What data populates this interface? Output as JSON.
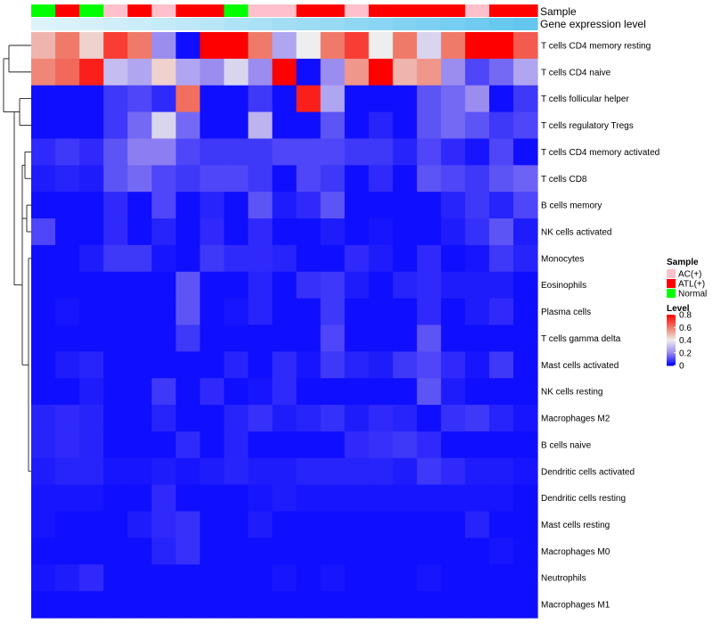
{
  "chart_data": {
    "type": "heatmap",
    "title": "",
    "row_labels": [
      "T cells CD4 memory resting",
      "T cells CD4 naive",
      "T cells follicular helper",
      "T cells regulatory  Tregs",
      "T cells CD4 memory activated",
      "T cells CD8",
      "B cells memory",
      "NK cells activated",
      "Monocytes",
      "Eosinophils",
      "Plasma cells",
      "T cells gamma delta",
      "Mast cells activated",
      "NK cells resting",
      "Macrophages M2",
      "B cells naive",
      "Dendritic cells activated",
      "Dendritic cells resting",
      "Mast cells resting",
      "Macrophages M0",
      "Neutrophils",
      "Macrophages M1"
    ],
    "column_annotations": {
      "sample_label": "Sample",
      "gene_label": "Gene expression level",
      "sample": [
        "Normal",
        "ATL(+)",
        "Normal",
        "AC(+)",
        "ATL(+)",
        "AC(+)",
        "ATL(+)",
        "ATL(+)",
        "Normal",
        "AC(+)",
        "AC(+)",
        "ATL(+)",
        "ATL(+)",
        "AC(+)",
        "ATL(+)",
        "ATL(+)",
        "ATL(+)",
        "ATL(+)",
        "AC(+)",
        "ATL(+)",
        "ATL(+)"
      ],
      "gene_expression_level": [
        0.02,
        0.05,
        0.08,
        0.12,
        0.16,
        0.2,
        0.25,
        0.3,
        0.35,
        0.4,
        0.45,
        0.5,
        0.55,
        0.6,
        0.65,
        0.7,
        0.75,
        0.8,
        0.85,
        0.9,
        0.95
      ]
    },
    "values": [
      [
        0.5,
        0.6,
        0.45,
        0.7,
        0.6,
        0.2,
        0.02,
        0.8,
        0.8,
        0.6,
        0.25,
        0.4,
        0.6,
        0.7,
        0.4,
        0.6,
        0.35,
        0.6,
        0.8,
        0.8,
        0.65
      ],
      [
        0.58,
        0.63,
        0.75,
        0.3,
        0.25,
        0.45,
        0.25,
        0.2,
        0.35,
        0.2,
        0.8,
        0.02,
        0.2,
        0.55,
        0.8,
        0.5,
        0.55,
        0.2,
        0.1,
        0.15,
        0.25
      ],
      [
        0.02,
        0.02,
        0.02,
        0.08,
        0.1,
        0.06,
        0.62,
        0.02,
        0.02,
        0.08,
        0.02,
        0.75,
        0.25,
        0.02,
        0.02,
        0.02,
        0.12,
        0.15,
        0.2,
        0.02,
        0.08
      ],
      [
        0.02,
        0.02,
        0.02,
        0.08,
        0.15,
        0.35,
        0.15,
        0.02,
        0.02,
        0.28,
        0.02,
        0.02,
        0.12,
        0.02,
        0.05,
        0.02,
        0.12,
        0.15,
        0.12,
        0.08,
        0.1
      ],
      [
        0.06,
        0.08,
        0.06,
        0.12,
        0.18,
        0.18,
        0.1,
        0.08,
        0.08,
        0.08,
        0.1,
        0.1,
        0.1,
        0.08,
        0.08,
        0.05,
        0.1,
        0.06,
        0.03,
        0.1,
        0.02
      ],
      [
        0.04,
        0.05,
        0.04,
        0.12,
        0.15,
        0.1,
        0.08,
        0.1,
        0.1,
        0.08,
        0.02,
        0.1,
        0.08,
        0.02,
        0.06,
        0.02,
        0.12,
        0.1,
        0.08,
        0.12,
        0.14
      ],
      [
        0.02,
        0.02,
        0.02,
        0.06,
        0.02,
        0.1,
        0.02,
        0.05,
        0.02,
        0.12,
        0.04,
        0.06,
        0.12,
        0.02,
        0.02,
        0.02,
        0.02,
        0.05,
        0.08,
        0.05,
        0.1
      ],
      [
        0.1,
        0.02,
        0.02,
        0.06,
        0.02,
        0.05,
        0.02,
        0.06,
        0.02,
        0.06,
        0.02,
        0.02,
        0.04,
        0.02,
        0.03,
        0.02,
        0.02,
        0.04,
        0.07,
        0.12,
        0.04
      ],
      [
        0.02,
        0.02,
        0.04,
        0.08,
        0.08,
        0.03,
        0.02,
        0.08,
        0.06,
        0.06,
        0.05,
        0.02,
        0.02,
        0.06,
        0.04,
        0.02,
        0.06,
        0.02,
        0.03,
        0.08,
        0.05
      ],
      [
        0.02,
        0.02,
        0.02,
        0.02,
        0.02,
        0.02,
        0.12,
        0.02,
        0.02,
        0.05,
        0.02,
        0.07,
        0.08,
        0.04,
        0.02,
        0.05,
        0.06,
        0.04,
        0.04,
        0.04,
        0.02
      ],
      [
        0.02,
        0.03,
        0.02,
        0.02,
        0.02,
        0.02,
        0.12,
        0.02,
        0.03,
        0.05,
        0.02,
        0.02,
        0.08,
        0.02,
        0.02,
        0.02,
        0.06,
        0.02,
        0.04,
        0.06,
        0.02
      ],
      [
        0.02,
        0.02,
        0.02,
        0.02,
        0.02,
        0.02,
        0.08,
        0.02,
        0.02,
        0.02,
        0.02,
        0.02,
        0.1,
        0.02,
        0.02,
        0.02,
        0.12,
        0.02,
        0.02,
        0.02,
        0.02
      ],
      [
        0.02,
        0.04,
        0.05,
        0.02,
        0.02,
        0.02,
        0.02,
        0.02,
        0.05,
        0.02,
        0.06,
        0.03,
        0.08,
        0.05,
        0.04,
        0.08,
        0.1,
        0.06,
        0.03,
        0.08,
        0.02
      ],
      [
        0.02,
        0.02,
        0.04,
        0.02,
        0.02,
        0.08,
        0.02,
        0.06,
        0.02,
        0.03,
        0.06,
        0.02,
        0.02,
        0.02,
        0.02,
        0.02,
        0.12,
        0.04,
        0.02,
        0.02,
        0.02
      ],
      [
        0.05,
        0.06,
        0.05,
        0.02,
        0.02,
        0.05,
        0.02,
        0.02,
        0.05,
        0.07,
        0.04,
        0.05,
        0.07,
        0.04,
        0.06,
        0.05,
        0.02,
        0.07,
        0.08,
        0.05,
        0.03
      ],
      [
        0.05,
        0.06,
        0.05,
        0.02,
        0.02,
        0.02,
        0.06,
        0.02,
        0.05,
        0.02,
        0.02,
        0.02,
        0.02,
        0.06,
        0.07,
        0.08,
        0.06,
        0.02,
        0.02,
        0.02,
        0.02
      ],
      [
        0.04,
        0.05,
        0.05,
        0.03,
        0.03,
        0.04,
        0.03,
        0.04,
        0.05,
        0.04,
        0.04,
        0.05,
        0.05,
        0.05,
        0.05,
        0.04,
        0.08,
        0.06,
        0.04,
        0.04,
        0.03
      ],
      [
        0.03,
        0.03,
        0.03,
        0.02,
        0.02,
        0.06,
        0.02,
        0.02,
        0.02,
        0.03,
        0.04,
        0.03,
        0.03,
        0.03,
        0.03,
        0.03,
        0.03,
        0.03,
        0.03,
        0.03,
        0.02
      ],
      [
        0.03,
        0.02,
        0.02,
        0.02,
        0.04,
        0.06,
        0.07,
        0.02,
        0.02,
        0.04,
        0.02,
        0.02,
        0.02,
        0.02,
        0.02,
        0.02,
        0.02,
        0.02,
        0.05,
        0.02,
        0.02
      ],
      [
        0.02,
        0.02,
        0.02,
        0.02,
        0.02,
        0.05,
        0.07,
        0.02,
        0.02,
        0.02,
        0.02,
        0.02,
        0.02,
        0.02,
        0.02,
        0.02,
        0.02,
        0.02,
        0.02,
        0.03,
        0.02
      ],
      [
        0.03,
        0.04,
        0.06,
        0.02,
        0.02,
        0.02,
        0.02,
        0.02,
        0.02,
        0.02,
        0.03,
        0.02,
        0.03,
        0.02,
        0.02,
        0.02,
        0.03,
        0.02,
        0.02,
        0.02,
        0.02
      ],
      [
        0.02,
        0.02,
        0.02,
        0.02,
        0.02,
        0.02,
        0.02,
        0.02,
        0.02,
        0.02,
        0.02,
        0.02,
        0.02,
        0.02,
        0.02,
        0.02,
        0.02,
        0.02,
        0.02,
        0.02,
        0.02
      ]
    ],
    "color_scale": {
      "stops": [
        {
          "value": 0.0,
          "color": "#0000ff"
        },
        {
          "value": 0.2,
          "color": "#9b8cf0"
        },
        {
          "value": 0.4,
          "color": "#eeeeee"
        },
        {
          "value": 0.6,
          "color": "#f07a6a"
        },
        {
          "value": 0.8,
          "color": "#ff0000"
        }
      ]
    },
    "legend": {
      "sample_title": "Sample",
      "sample_entries": [
        {
          "label": "AC(+)",
          "color": "#ffc0cb"
        },
        {
          "label": "ATL(+)",
          "color": "#ff0000"
        },
        {
          "label": "Normal",
          "color": "#00ff00"
        }
      ],
      "level_title": "Level",
      "level_ticks": [
        "0.8",
        "0.6",
        "0.4",
        "0.2",
        "0"
      ],
      "level_tick_values": [
        0.8,
        0.6,
        0.4,
        0.2,
        0
      ]
    },
    "gene_level_color_range": [
      "#e0f4fb",
      "#5bc4ee"
    ],
    "dendrogram": "row clustering tree on left"
  }
}
